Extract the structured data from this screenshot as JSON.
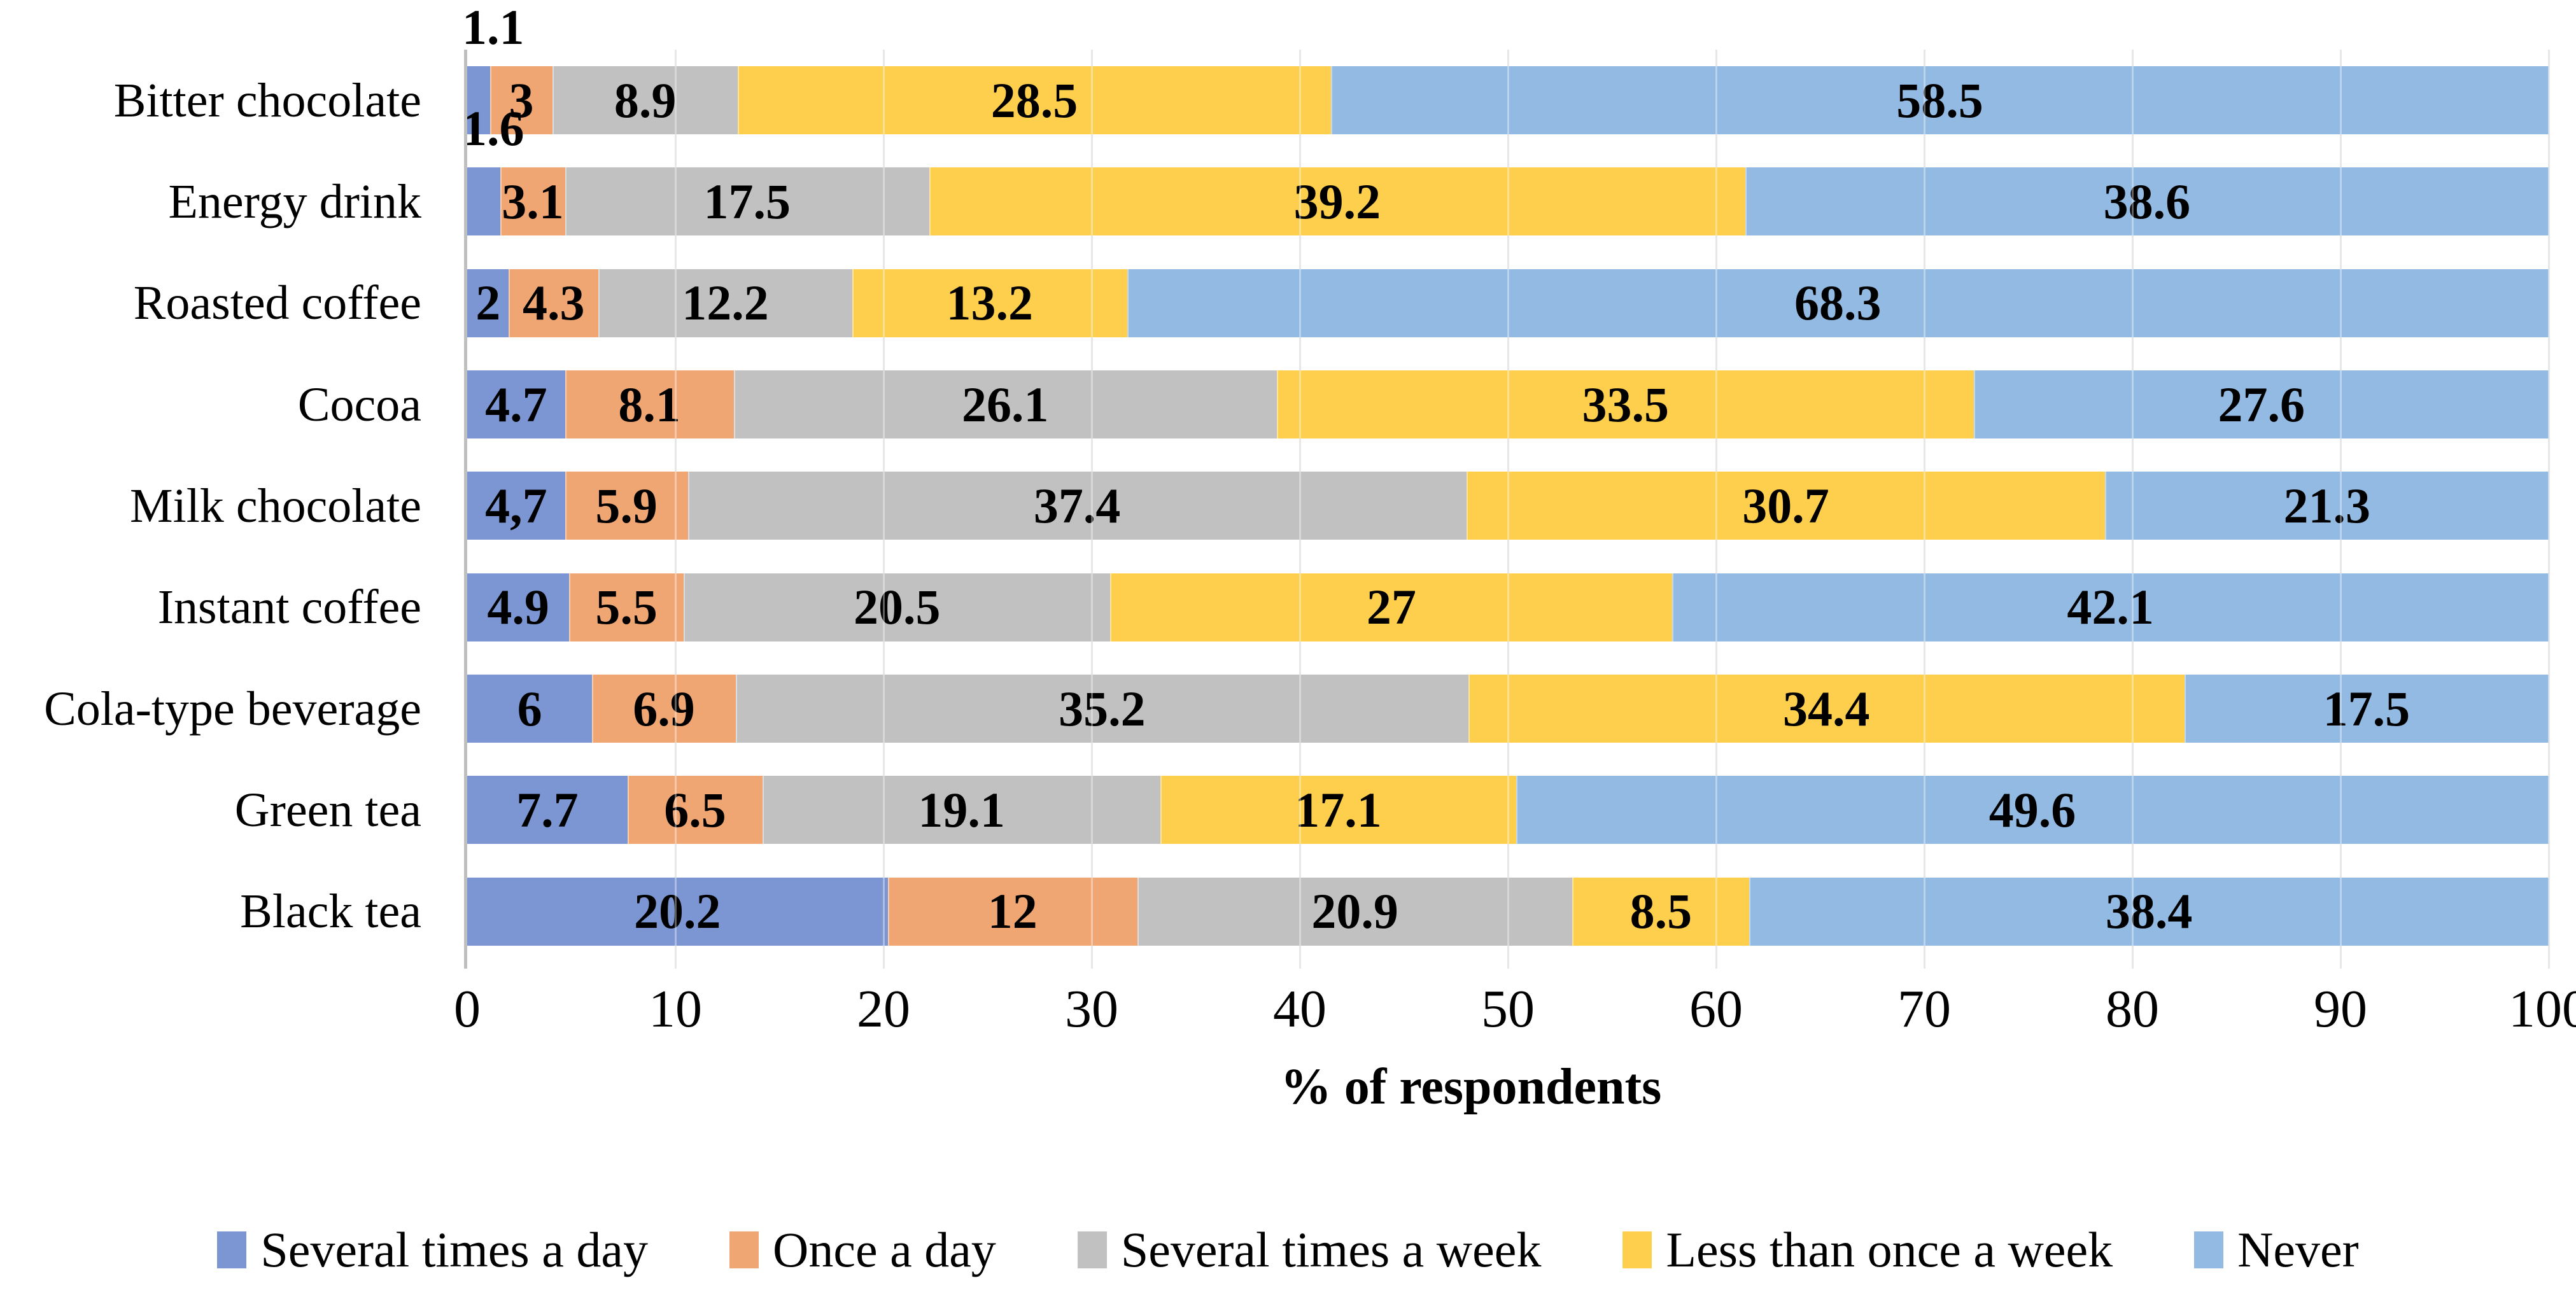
{
  "chart_data": {
    "type": "bar",
    "variant": "horizontal-stacked",
    "title": "",
    "xlabel": "% of respondents",
    "ylabel": "",
    "xlim": [
      0,
      100
    ],
    "xticks": [
      "0",
      "10",
      "20",
      "30",
      "40",
      "50",
      "60",
      "70",
      "80",
      "90",
      "100"
    ],
    "grid": true,
    "legend_position": "bottom",
    "categories": [
      "Bitter chocolate",
      "Energy drink",
      "Roasted coffee",
      "Cocoa",
      "Milk chocolate",
      "Instant coffee",
      "Cola-type beverage",
      "Green tea",
      "Black tea"
    ],
    "series": [
      {
        "name": "Several times a day",
        "color": "#7B96D3",
        "values": [
          1.1,
          1.6,
          2,
          4.7,
          4.7,
          4.9,
          6,
          7.7,
          20.2
        ],
        "labels": [
          "1.1",
          "1.6",
          "2",
          "4.7",
          "4,7",
          "4.9",
          "6",
          "7.7",
          "20.2"
        ],
        "label_outside": [
          true,
          true,
          false,
          false,
          false,
          false,
          false,
          false,
          false
        ]
      },
      {
        "name": "Once a day",
        "color": "#F0A673",
        "values": [
          3,
          3.1,
          4.3,
          8.1,
          5.9,
          5.5,
          6.9,
          6.5,
          12
        ],
        "labels": [
          "3",
          "3.1",
          "4.3",
          "8.1",
          "5.9",
          "5.5",
          "6.9",
          "6.5",
          "12"
        ],
        "label_outside": [
          false,
          false,
          false,
          false,
          false,
          false,
          false,
          false,
          false
        ]
      },
      {
        "name": "Several times a week",
        "color": "#C1C1C1",
        "values": [
          8.9,
          17.5,
          12.2,
          26.1,
          37.4,
          20.5,
          35.2,
          19.1,
          20.9
        ],
        "labels": [
          "8.9",
          "17.5",
          "12.2",
          "26.1",
          "37.4",
          "20.5",
          "35.2",
          "19.1",
          "20.9"
        ],
        "label_outside": [
          false,
          false,
          false,
          false,
          false,
          false,
          false,
          false,
          false
        ]
      },
      {
        "name": "Less than once a week",
        "color": "#FDCF4D",
        "values": [
          28.5,
          39.2,
          13.2,
          33.5,
          30.7,
          27,
          34.4,
          17.1,
          8.5
        ],
        "labels": [
          "28.5",
          "39.2",
          "13.2",
          "33.5",
          "30.7",
          "27",
          "34.4",
          "17.1",
          "8.5"
        ],
        "label_outside": [
          false,
          false,
          false,
          false,
          false,
          false,
          false,
          false,
          false
        ]
      },
      {
        "name": "Never",
        "color": "#92BAE2",
        "values": [
          58.5,
          38.6,
          68.3,
          27.6,
          21.3,
          42.1,
          17.5,
          49.6,
          38.4
        ],
        "labels": [
          "58.5",
          "38.6",
          "68.3",
          "27.6",
          "21.3",
          "42.1",
          "17.5",
          "49.6",
          "38.4"
        ],
        "label_outside": [
          false,
          false,
          false,
          false,
          false,
          false,
          false,
          false,
          false
        ]
      }
    ]
  },
  "style": {
    "axis_line_color": "#BFBFBF",
    "grid_color": "#D9D9D9",
    "text_color": "#000000",
    "background": "#FFFFFF"
  }
}
